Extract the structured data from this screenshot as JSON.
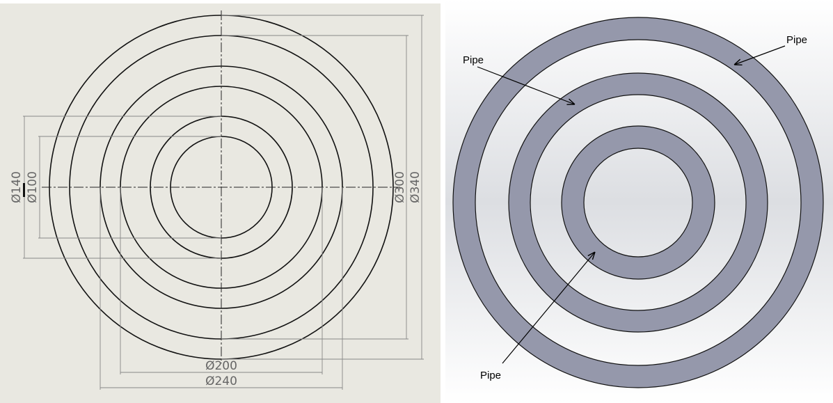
{
  "left_drawing": {
    "dimensions": {
      "d140": "Ø140",
      "d100": "Ø100",
      "d300": "Ø300",
      "d340": "Ø340",
      "d200": "Ø200",
      "d240": "Ø240"
    }
  },
  "right_model": {
    "labels": [
      "Pipe",
      "Pipe",
      "Pipe"
    ]
  }
}
